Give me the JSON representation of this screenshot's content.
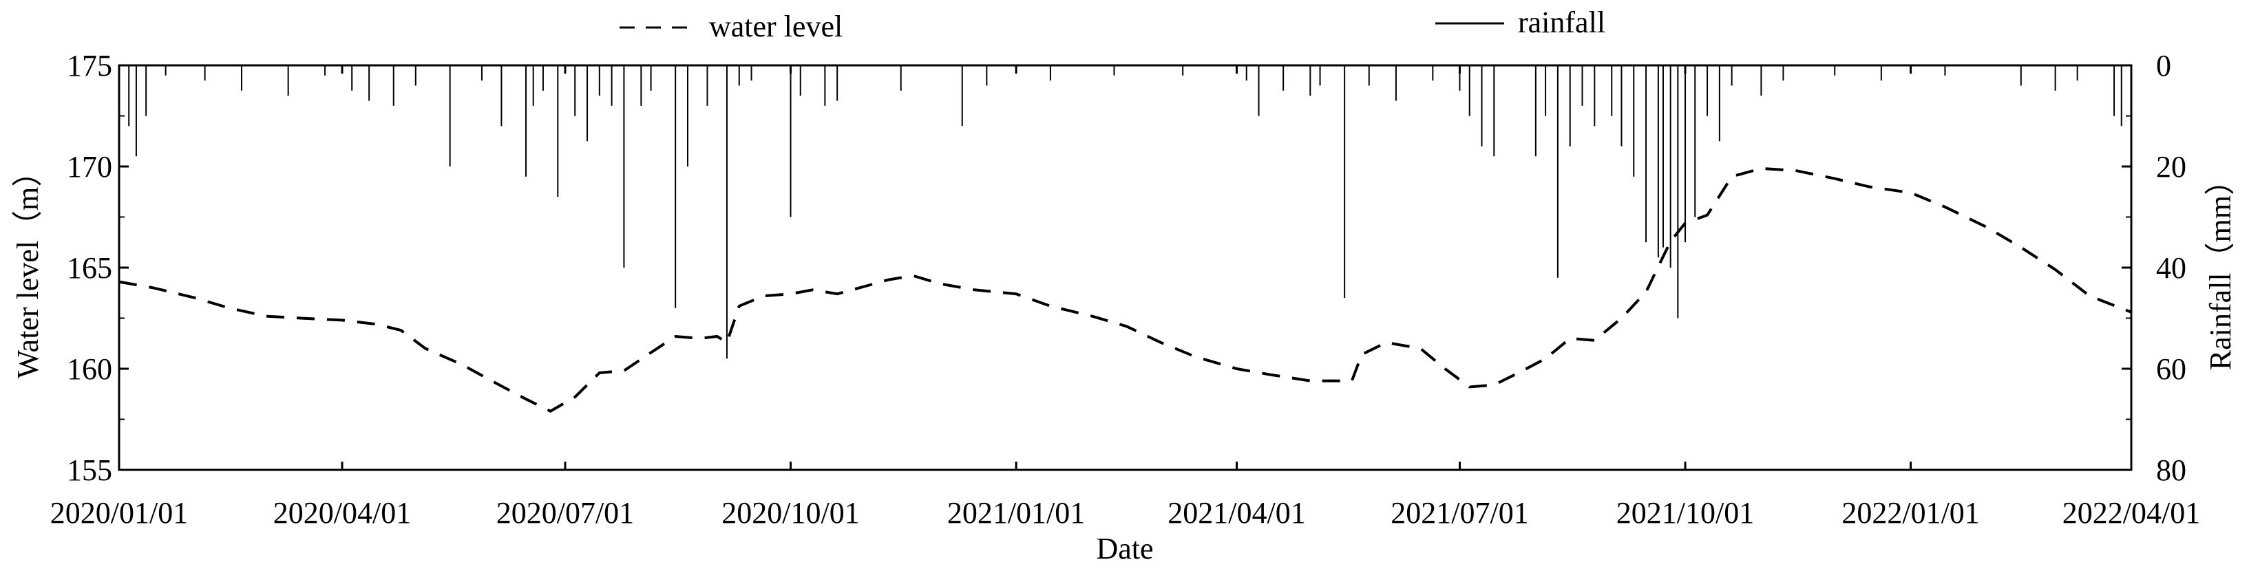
{
  "chart_data": {
    "type": "line",
    "xlabel": "Date",
    "ylabel_left": "Water level（m）",
    "ylabel_right": "Rainfall（mm）",
    "x_range": [
      "2020/01/01",
      "2022/04/01"
    ],
    "x_ticks": [
      "2020/01/01",
      "2020/04/01",
      "2020/07/01",
      "2020/10/01",
      "2021/01/01",
      "2021/04/01",
      "2021/07/01",
      "2021/10/01",
      "2022/01/01",
      "2022/04/01"
    ],
    "ylim_left": [
      155,
      175
    ],
    "yticks_left": [
      "155",
      "160",
      "165",
      "170",
      "175"
    ],
    "ylim_right": [
      80,
      0
    ],
    "yticks_right": [
      "0",
      "20",
      "40",
      "60",
      "80"
    ],
    "grid": false,
    "legend_position": "top-center",
    "legend": {
      "water_label": "water level",
      "rain_label": "rainfall"
    },
    "series": [
      {
        "name": "water level",
        "style": "dashed",
        "color": "#000000",
        "points": [
          [
            "2020/01/01",
            164.3
          ],
          [
            "2020/01/15",
            164.0
          ],
          [
            "2020/02/01",
            163.5
          ],
          [
            "2020/02/15",
            163.0
          ],
          [
            "2020/03/01",
            162.6
          ],
          [
            "2020/03/15",
            162.5
          ],
          [
            "2020/04/01",
            162.4
          ],
          [
            "2020/04/15",
            162.2
          ],
          [
            "2020/04/25",
            161.9
          ],
          [
            "2020/05/05",
            161.0
          ],
          [
            "2020/05/20",
            160.2
          ],
          [
            "2020/06/01",
            159.4
          ],
          [
            "2020/06/15",
            158.5
          ],
          [
            "2020/06/25",
            157.9
          ],
          [
            "2020/07/05",
            158.6
          ],
          [
            "2020/07/15",
            159.8
          ],
          [
            "2020/07/25",
            159.9
          ],
          [
            "2020/08/05",
            160.8
          ],
          [
            "2020/08/15",
            161.6
          ],
          [
            "2020/08/25",
            161.5
          ],
          [
            "2020/09/01",
            161.6
          ],
          [
            "2020/09/05",
            161.3
          ],
          [
            "2020/09/10",
            163.1
          ],
          [
            "2020/09/20",
            163.6
          ],
          [
            "2020/10/01",
            163.7
          ],
          [
            "2020/10/10",
            163.9
          ],
          [
            "2020/10/20",
            163.7
          ],
          [
            "2020/11/01",
            164.1
          ],
          [
            "2020/11/10",
            164.4
          ],
          [
            "2020/11/20",
            164.6
          ],
          [
            "2020/12/01",
            164.2
          ],
          [
            "2020/12/15",
            163.9
          ],
          [
            "2021/01/01",
            163.7
          ],
          [
            "2021/01/15",
            163.1
          ],
          [
            "2021/02/01",
            162.6
          ],
          [
            "2021/02/15",
            162.1
          ],
          [
            "2021/03/01",
            161.3
          ],
          [
            "2021/03/15",
            160.6
          ],
          [
            "2021/04/01",
            160.0
          ],
          [
            "2021/04/15",
            159.7
          ],
          [
            "2021/05/01",
            159.4
          ],
          [
            "2021/05/18",
            159.4
          ],
          [
            "2021/05/22",
            160.7
          ],
          [
            "2021/06/01",
            161.3
          ],
          [
            "2021/06/15",
            161.0
          ],
          [
            "2021/06/25",
            160.0
          ],
          [
            "2021/07/05",
            159.1
          ],
          [
            "2021/07/15",
            159.2
          ],
          [
            "2021/07/25",
            159.8
          ],
          [
            "2021/08/05",
            160.5
          ],
          [
            "2021/08/15",
            161.5
          ],
          [
            "2021/08/25",
            161.4
          ],
          [
            "2021/09/05",
            162.5
          ],
          [
            "2021/09/15",
            163.8
          ],
          [
            "2021/09/25",
            166.3
          ],
          [
            "2021/10/01",
            167.2
          ],
          [
            "2021/10/10",
            167.6
          ],
          [
            "2021/10/20",
            169.5
          ],
          [
            "2021/11/01",
            169.9
          ],
          [
            "2021/11/15",
            169.8
          ],
          [
            "2021/12/01",
            169.4
          ],
          [
            "2021/12/15",
            169.0
          ],
          [
            "2022/01/01",
            168.7
          ],
          [
            "2022/01/15",
            168.0
          ],
          [
            "2022/02/01",
            167.0
          ],
          [
            "2022/02/15",
            166.0
          ],
          [
            "2022/03/01",
            164.9
          ],
          [
            "2022/03/15",
            163.6
          ],
          [
            "2022/04/01",
            162.8
          ]
        ]
      },
      {
        "name": "rainfall",
        "style": "solid",
        "color": "#000000",
        "bars": [
          [
            "2020/01/05",
            12
          ],
          [
            "2020/01/08",
            18
          ],
          [
            "2020/01/12",
            10
          ],
          [
            "2020/01/20",
            2
          ],
          [
            "2020/02/05",
            3
          ],
          [
            "2020/02/20",
            5
          ],
          [
            "2020/03/10",
            6
          ],
          [
            "2020/03/25",
            2
          ],
          [
            "2020/04/05",
            5
          ],
          [
            "2020/04/12",
            7
          ],
          [
            "2020/04/22",
            8
          ],
          [
            "2020/05/01",
            4
          ],
          [
            "2020/05/15",
            20
          ],
          [
            "2020/05/28",
            3
          ],
          [
            "2020/06/05",
            12
          ],
          [
            "2020/06/15",
            22
          ],
          [
            "2020/06/18",
            8
          ],
          [
            "2020/06/22",
            5
          ],
          [
            "2020/06/28",
            26
          ],
          [
            "2020/07/05",
            10
          ],
          [
            "2020/07/10",
            15
          ],
          [
            "2020/07/15",
            6
          ],
          [
            "2020/07/20",
            8
          ],
          [
            "2020/07/25",
            40
          ],
          [
            "2020/08/01",
            8
          ],
          [
            "2020/08/05",
            5
          ],
          [
            "2020/08/15",
            48
          ],
          [
            "2020/08/20",
            20
          ],
          [
            "2020/08/28",
            8
          ],
          [
            "2020/09/05",
            58
          ],
          [
            "2020/09/10",
            4
          ],
          [
            "2020/09/15",
            3
          ],
          [
            "2020/10/01",
            30
          ],
          [
            "2020/10/05",
            6
          ],
          [
            "2020/10/15",
            8
          ],
          [
            "2020/10/20",
            7
          ],
          [
            "2020/11/15",
            5
          ],
          [
            "2020/12/10",
            12
          ],
          [
            "2020/12/20",
            4
          ],
          [
            "2021/01/15",
            3
          ],
          [
            "2021/02/10",
            2
          ],
          [
            "2021/03/10",
            2
          ],
          [
            "2021/04/05",
            3
          ],
          [
            "2021/04/10",
            10
          ],
          [
            "2021/04/20",
            5
          ],
          [
            "2021/05/01",
            6
          ],
          [
            "2021/05/05",
            4
          ],
          [
            "2021/05/15",
            46
          ],
          [
            "2021/05/25",
            4
          ],
          [
            "2021/06/05",
            7
          ],
          [
            "2021/06/20",
            3
          ],
          [
            "2021/07/01",
            5
          ],
          [
            "2021/07/05",
            10
          ],
          [
            "2021/07/10",
            16
          ],
          [
            "2021/07/15",
            18
          ],
          [
            "2021/08/01",
            18
          ],
          [
            "2021/08/05",
            10
          ],
          [
            "2021/08/10",
            42
          ],
          [
            "2021/08/15",
            16
          ],
          [
            "2021/08/20",
            8
          ],
          [
            "2021/08/25",
            12
          ],
          [
            "2021/09/01",
            10
          ],
          [
            "2021/09/05",
            16
          ],
          [
            "2021/09/10",
            22
          ],
          [
            "2021/09/15",
            35
          ],
          [
            "2021/09/20",
            38
          ],
          [
            "2021/09/22",
            36
          ],
          [
            "2021/09/25",
            40
          ],
          [
            "2021/09/28",
            50
          ],
          [
            "2021/10/01",
            35
          ],
          [
            "2021/10/05",
            30
          ],
          [
            "2021/10/10",
            10
          ],
          [
            "2021/10/15",
            15
          ],
          [
            "2021/10/20",
            4
          ],
          [
            "2021/11/01",
            6
          ],
          [
            "2021/11/10",
            3
          ],
          [
            "2021/12/01",
            2
          ],
          [
            "2021/12/20",
            3
          ],
          [
            "2022/01/15",
            2
          ],
          [
            "2022/02/15",
            4
          ],
          [
            "2022/03/01",
            5
          ],
          [
            "2022/03/10",
            3
          ],
          [
            "2022/03/25",
            10
          ],
          [
            "2022/03/28",
            12
          ]
        ]
      }
    ]
  }
}
